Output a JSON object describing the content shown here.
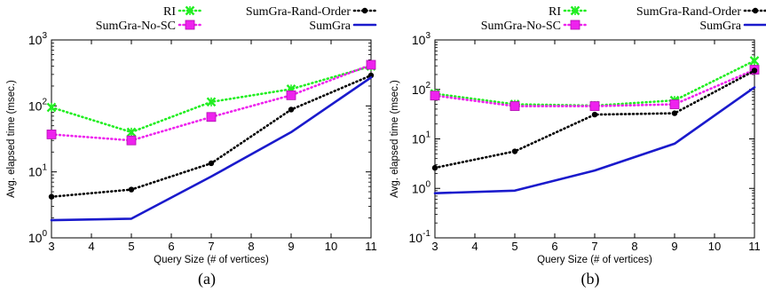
{
  "chart_data": [
    {
      "type": "line",
      "panel_label": "(a)",
      "xlabel": "Query Size (# of vertices)",
      "ylabel": "Avg. elapsed time (msec.)",
      "yscale": "log",
      "xlim": [
        3,
        11
      ],
      "ylim": [
        1,
        1000
      ],
      "x_ticks": [
        "3",
        "4",
        "5",
        "6",
        "7",
        "8",
        "9",
        "10",
        "11"
      ],
      "y_ticks": [
        {
          "base": "10",
          "exp": "0"
        },
        {
          "base": "10",
          "exp": "1"
        },
        {
          "base": "10",
          "exp": "2"
        },
        {
          "base": "10",
          "exp": "3"
        }
      ],
      "x": [
        3,
        5,
        7,
        9,
        11
      ],
      "legend": "top",
      "grid": false,
      "series": [
        {
          "name": "RI",
          "color": "#22ee22",
          "style": "dotted",
          "marker": "x",
          "values": [
            95,
            40,
            115,
            180,
            400
          ]
        },
        {
          "name": "SumGra-No-SC",
          "color": "#ee22ee",
          "style": "dotted",
          "marker": "square",
          "values": [
            37,
            30,
            68,
            145,
            420
          ]
        },
        {
          "name": "SumGra-Rand-Order",
          "color": "#000000",
          "style": "dotted",
          "marker": "circle",
          "values": [
            4.2,
            5.4,
            13.5,
            88,
            290
          ]
        },
        {
          "name": "SumGra",
          "color": "#1a1acc",
          "style": "solid",
          "marker": "none",
          "values": [
            1.85,
            1.95,
            8.5,
            40,
            270
          ]
        }
      ]
    },
    {
      "type": "line",
      "panel_label": "(b)",
      "xlabel": "Query Size (# of vertices)",
      "ylabel": "Avg. elapsed time (msec.)",
      "yscale": "log",
      "xlim": [
        3,
        11
      ],
      "ylim": [
        0.1,
        1000
      ],
      "x_ticks": [
        "3",
        "4",
        "5",
        "6",
        "7",
        "8",
        "9",
        "10",
        "11"
      ],
      "y_ticks": [
        {
          "base": "10",
          "exp": "-1"
        },
        {
          "base": "10",
          "exp": "0"
        },
        {
          "base": "10",
          "exp": "1"
        },
        {
          "base": "10",
          "exp": "2"
        },
        {
          "base": "10",
          "exp": "3"
        }
      ],
      "x": [
        3,
        5,
        7,
        9,
        11
      ],
      "legend": "top",
      "grid": false,
      "series": [
        {
          "name": "RI",
          "color": "#22ee22",
          "style": "dotted",
          "marker": "x",
          "values": [
            82,
            50,
            47,
            60,
            380
          ]
        },
        {
          "name": "SumGra-No-SC",
          "color": "#ee22ee",
          "style": "dotted",
          "marker": "square",
          "values": [
            75,
            46,
            46,
            50,
            250
          ]
        },
        {
          "name": "SumGra-Rand-Order",
          "color": "#000000",
          "style": "dotted",
          "marker": "circle",
          "values": [
            2.6,
            5.6,
            31,
            33,
            240
          ]
        },
        {
          "name": "SumGra",
          "color": "#1a1acc",
          "style": "solid",
          "marker": "none",
          "values": [
            0.8,
            0.9,
            2.3,
            8,
            110
          ]
        }
      ]
    }
  ]
}
